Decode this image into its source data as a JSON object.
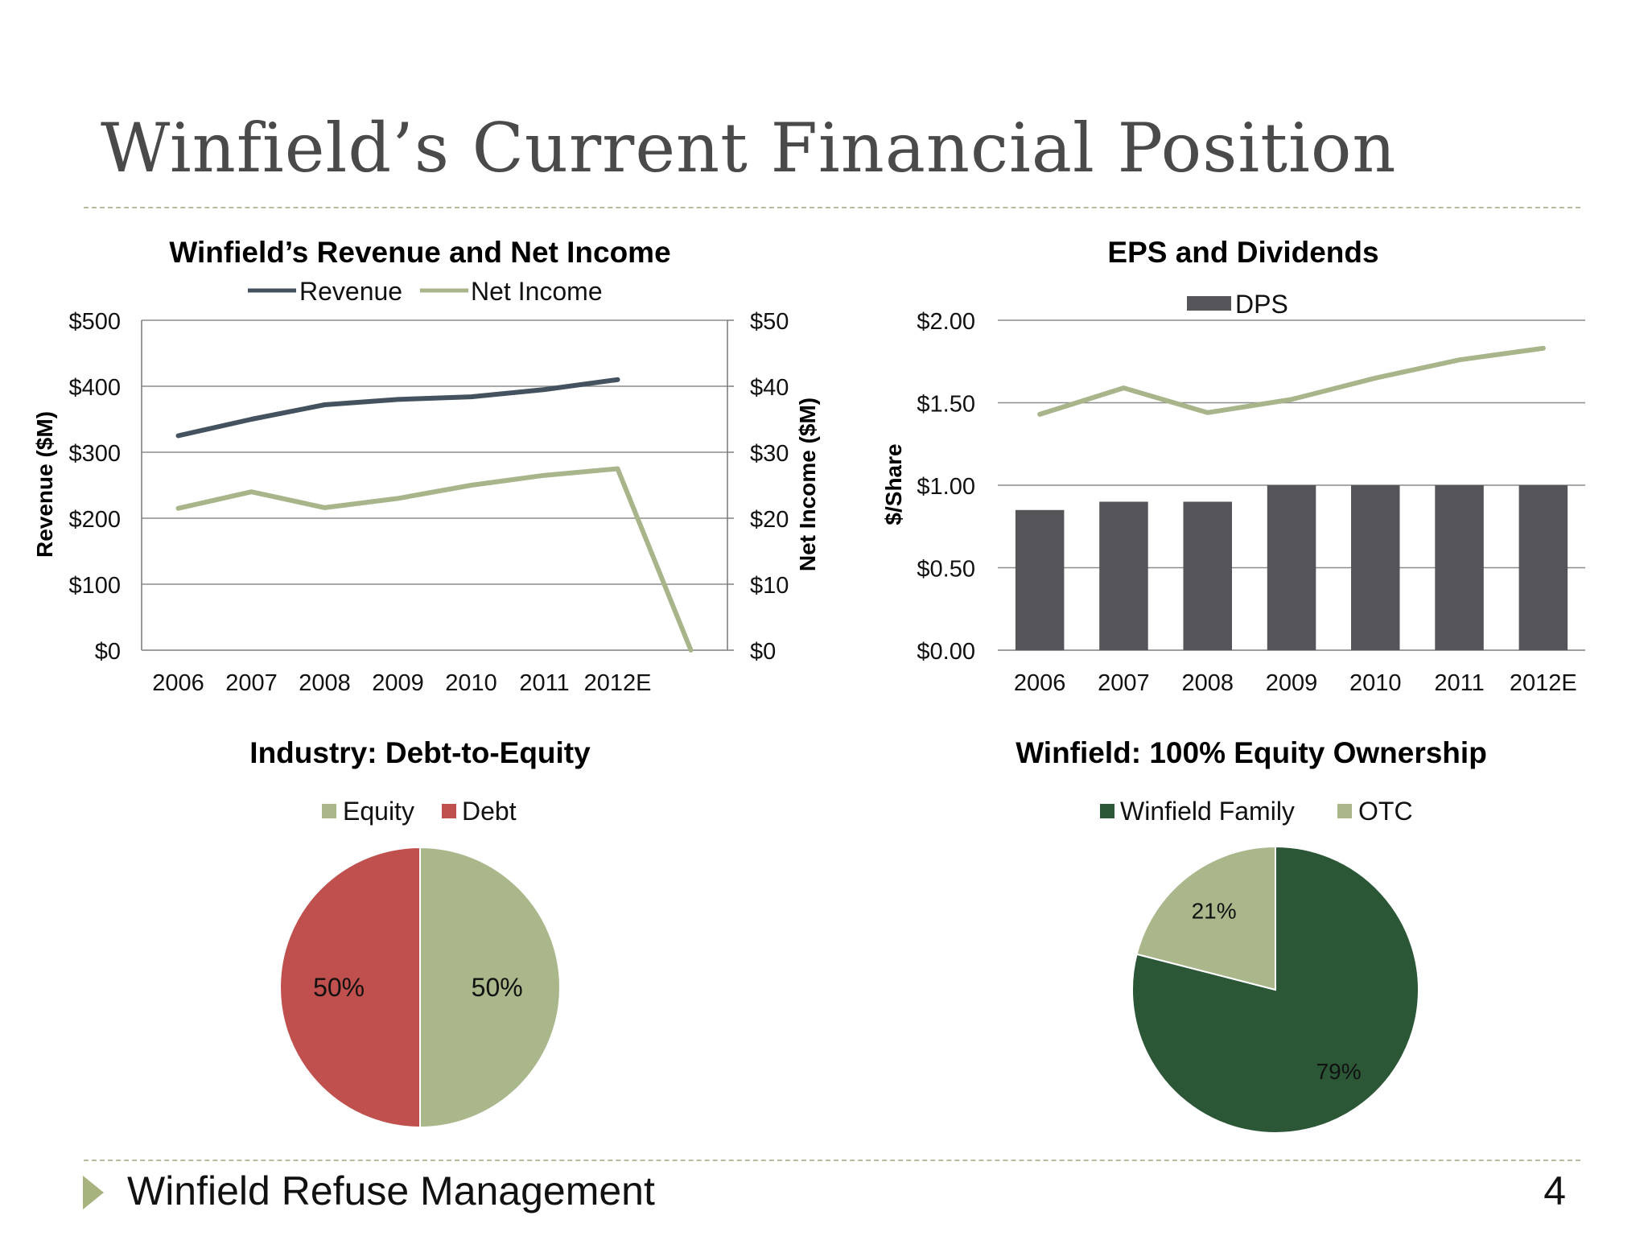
{
  "slide": {
    "title": "Winfield’s Current Financial Position",
    "footer": "Winfield Refuse Management",
    "page_number": "4"
  },
  "colors": {
    "revenue": "#44515e",
    "net_income": "#a8b58a",
    "dps": "#555458",
    "eps": "#a8b58a",
    "equity": "#a9b78b",
    "debt": "#c0504d",
    "winfield_family": "#2b5737",
    "otc": "#a9b78b",
    "gridline": "#8c8c8c"
  },
  "chart_data": [
    {
      "type": "line",
      "title": "Winfield’s Revenue and Net Income",
      "categories": [
        "2006",
        "2007",
        "2008",
        "2009",
        "2010",
        "2011",
        "2012E",
        ""
      ],
      "series": [
        {
          "name": "Revenue",
          "axis": "left",
          "values": [
            325,
            350,
            372,
            380,
            384,
            395,
            410,
            null
          ]
        },
        {
          "name": "Net Income",
          "axis": "right",
          "values": [
            21.5,
            24,
            21.6,
            23,
            25,
            26.5,
            27.5,
            0
          ]
        }
      ],
      "ylabel": "Revenue ($M)",
      "y2label": "Net Income ($M)",
      "ylim": [
        0,
        500
      ],
      "y2lim": [
        0,
        50
      ],
      "yticks": [
        "$0",
        "$100",
        "$200",
        "$300",
        "$400",
        "$500"
      ],
      "y2ticks": [
        "$0",
        "$10",
        "$20",
        "$30",
        "$40",
        "$50"
      ],
      "grid": true,
      "legend": "top"
    },
    {
      "type": "bar",
      "title": "EPS and Dividends",
      "categories": [
        "2006",
        "2007",
        "2008",
        "2009",
        "2010",
        "2011",
        "2012E"
      ],
      "series": [
        {
          "name": "DPS",
          "kind": "bar",
          "values": [
            0.85,
            0.9,
            0.9,
            1.0,
            1.0,
            1.0,
            1.0
          ]
        },
        {
          "kind": "line",
          "values": [
            1.43,
            1.59,
            1.44,
            1.52,
            1.65,
            1.76,
            1.83
          ]
        }
      ],
      "ylabel": "$/Share",
      "ylim": [
        0,
        2
      ],
      "yticks": [
        "$0.00",
        "$0.50",
        "$1.00",
        "$1.50",
        "$2.00"
      ],
      "grid": true,
      "legend": "top"
    },
    {
      "type": "pie",
      "title": "Industry: Debt-to-Equity",
      "slices": [
        {
          "name": "Equity",
          "value": 50,
          "label": "50%"
        },
        {
          "name": "Debt",
          "value": 50,
          "label": "50%"
        }
      ],
      "legend": "top"
    },
    {
      "type": "pie",
      "title": "Winfield: 100% Equity Ownership",
      "slices": [
        {
          "name": "Winfield Family",
          "value": 79,
          "label": "79%"
        },
        {
          "name": "OTC",
          "value": 21,
          "label": "21%"
        }
      ],
      "legend": "top"
    }
  ]
}
